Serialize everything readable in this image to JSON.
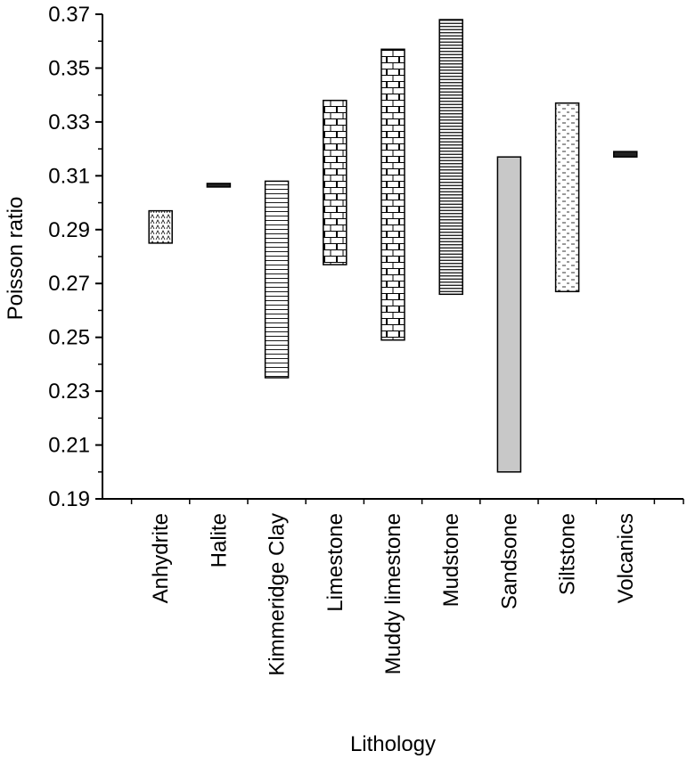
{
  "chart_data": {
    "type": "floating-bar",
    "title": "",
    "xlabel": "Lithology",
    "ylabel": "Poisson ratio",
    "ylim": [
      0.19,
      0.37
    ],
    "yticks": [
      "0.19",
      "0.21",
      "0.23",
      "0.25",
      "0.27",
      "0.29",
      "0.31",
      "0.33",
      "0.35",
      "0.37"
    ],
    "grid": false,
    "categories": [
      "Anhydrite",
      "Halite",
      "Kimmeridge Clay",
      "Limestone",
      "Muddy limestone",
      "Mudstone",
      "Sandsone",
      "Siltstone",
      "Volcanics"
    ],
    "ranges": [
      {
        "category": "Anhydrite",
        "low": 0.285,
        "high": 0.297,
        "pattern": "dots"
      },
      {
        "category": "Halite",
        "low": 0.306,
        "high": 0.307,
        "pattern": "solid-dark"
      },
      {
        "category": "Kimmeridge Clay",
        "low": 0.235,
        "high": 0.308,
        "pattern": "horizontal-lines"
      },
      {
        "category": "Limestone",
        "low": 0.277,
        "high": 0.338,
        "pattern": "brick"
      },
      {
        "category": "Muddy limestone",
        "low": 0.249,
        "high": 0.357,
        "pattern": "brick"
      },
      {
        "category": "Mudstone",
        "low": 0.266,
        "high": 0.368,
        "pattern": "dense-horizontal-lines"
      },
      {
        "category": "Sandsone",
        "low": 0.2,
        "high": 0.317,
        "pattern": "solid-gray"
      },
      {
        "category": "Siltstone",
        "low": 0.267,
        "high": 0.337,
        "pattern": "dashed-lines"
      },
      {
        "category": "Volcanics",
        "low": 0.317,
        "high": 0.319,
        "pattern": "solid-dark"
      }
    ],
    "colors": {
      "axis": "#000000",
      "bar_stroke": "#000000",
      "sandstone_fill": "#c8c8c8",
      "dark_fill": "#222222"
    }
  }
}
